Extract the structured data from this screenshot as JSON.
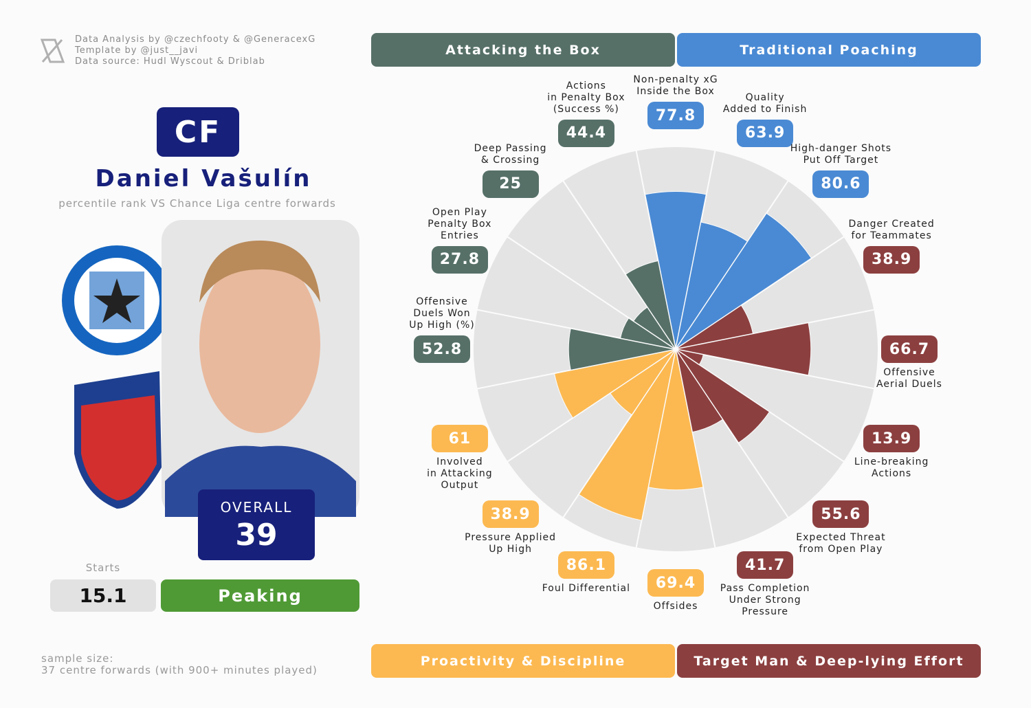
{
  "header": {
    "credits": [
      "Data Analysis by @czechfooty & @GeneracexG",
      "Template by @just__javi",
      "Data source: Hudl Wyscout & Driblab"
    ],
    "position": "CF",
    "player": "Daniel Vašulín",
    "subtitle": "percentile rank VS Chance Liga centre forwards",
    "overall_label": "OVERALL",
    "overall": 39,
    "starts_label": "Starts",
    "starts": 15.1,
    "status": "Peaking",
    "sample_size": [
      "sample size:",
      "37 centre forwards (with 900+ minutes played)"
    ]
  },
  "chart_data": {
    "type": "pizza",
    "ylim": [
      0,
      100
    ],
    "series": [
      {
        "name": "Traditional Poaching",
        "color": "#4a8ad4",
        "categories": [
          "Non-penalty xG\nInside the Box",
          "Quality\nAdded to Finish",
          "High-danger Shots\nPut Off Target"
        ],
        "values": [
          77.8,
          63.9,
          80.6
        ]
      },
      {
        "name": "Target Man & Deep-lying Effort",
        "color": "#8c3f3f",
        "categories": [
          "Danger Created\nfor Teammates",
          "Offensive\nAerial Duels",
          "Line-breaking\nActions",
          "Expected Threat\nfrom Open Play",
          "Pass Completion\nUnder Strong\nPressure"
        ],
        "values": [
          38.9,
          66.7,
          13.9,
          55.6,
          41.7
        ]
      },
      {
        "name": "Proactivity & Discipline",
        "color": "#fcb951",
        "categories": [
          "Offsides",
          "Foul Differential",
          "Pressure Applied\nUp High",
          "Involved\nin Attacking\nOutput"
        ],
        "values": [
          69.4,
          86.1,
          38.9,
          61
        ]
      },
      {
        "name": "Attacking the Box",
        "color": "#567068",
        "categories": [
          "Offensive\nDuels Won\nUp High (%)",
          "Open Play\nPenalty Box\nEntries",
          "Deep Passing\n& Crossing",
          "Actions\nin Penalty Box\n(Success %)"
        ],
        "values": [
          52.8,
          27.8,
          25,
          44.4
        ]
      }
    ]
  }
}
